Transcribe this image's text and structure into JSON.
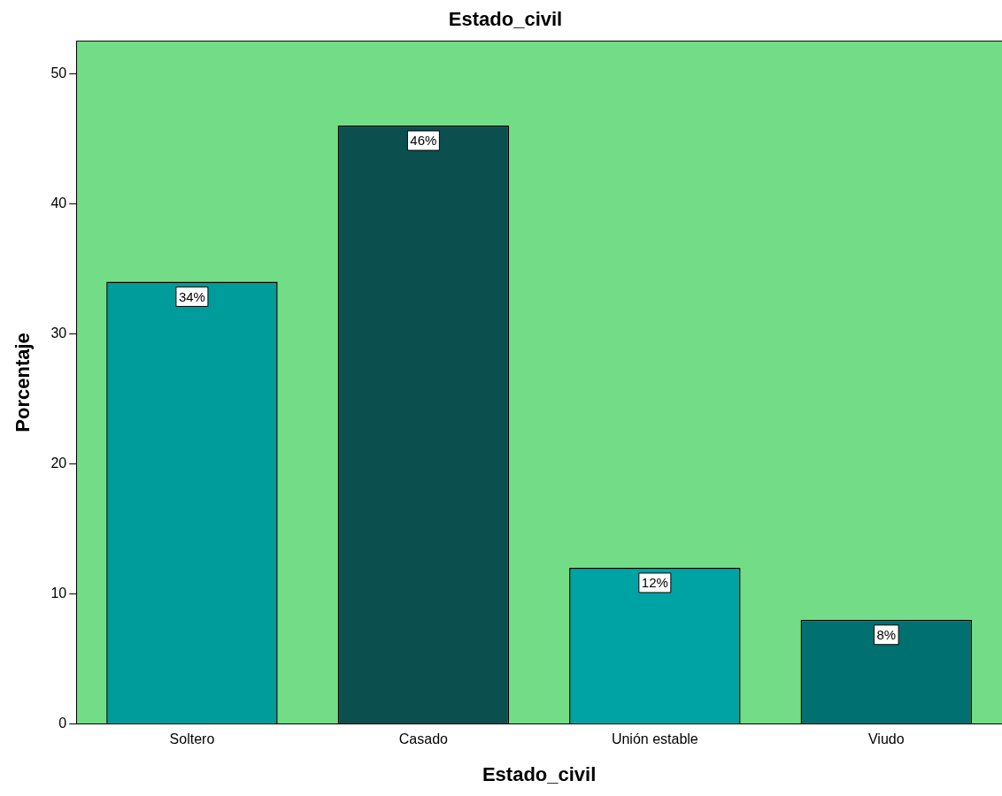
{
  "chart_data": {
    "type": "bar",
    "title": "Estado_civil",
    "xlabel": "Estado_civil",
    "ylabel": "Porcentaje",
    "categories": [
      "Soltero",
      "Casado",
      "Unión estable",
      "Viudo"
    ],
    "values": [
      34,
      46,
      12,
      8
    ],
    "colors": [
      "#009c9c",
      "#0b4f4f",
      "#00a3a3",
      "#007070"
    ],
    "value_labels": [
      "34%",
      "46%",
      "12%",
      "8%"
    ],
    "ylim": [
      0,
      52.5
    ],
    "yticks": [
      0,
      10,
      20,
      30,
      40,
      50
    ],
    "grid": false,
    "legend": false
  }
}
